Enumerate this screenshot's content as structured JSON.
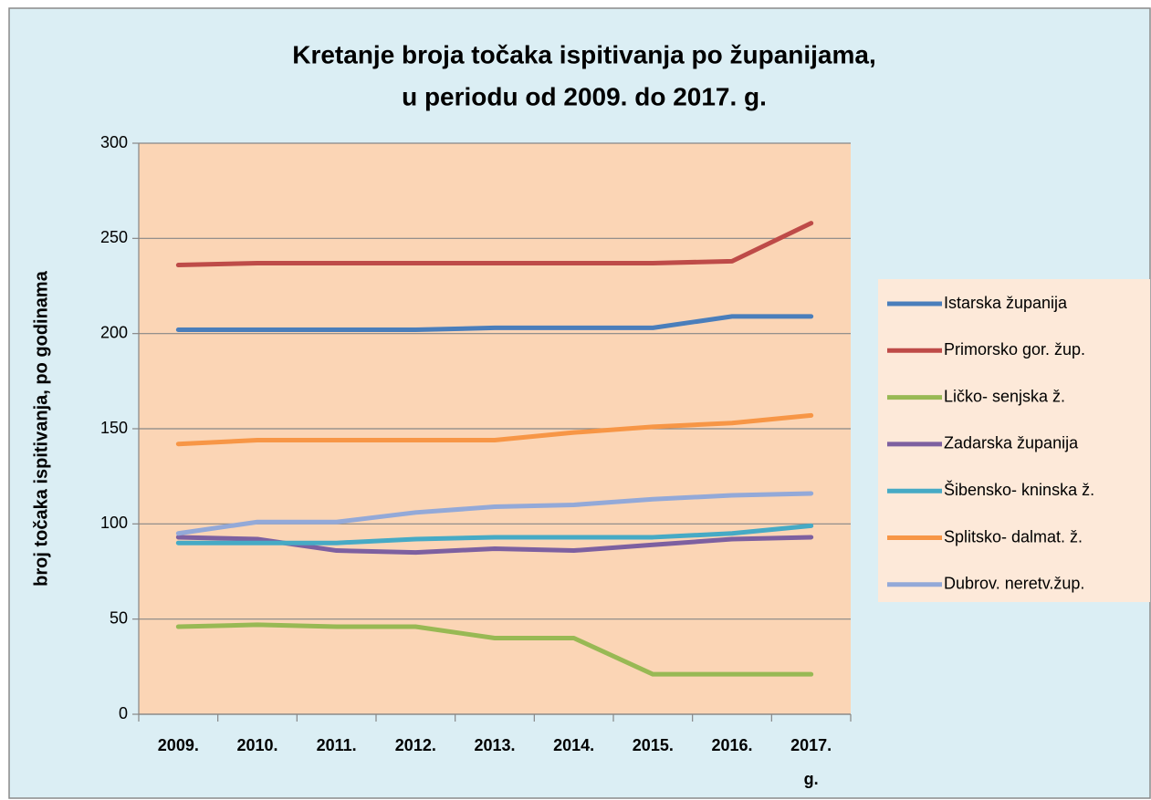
{
  "chart_data": {
    "type": "line",
    "title": [
      "Kretanje broja točaka ispitivanja po županijama,",
      "u periodu od 2009. do 2017. g."
    ],
    "y_label": "broj točaka ispitivanja, po godinama",
    "categories": [
      "2009.",
      "2010.",
      "2011.",
      "2012.",
      "2013.",
      "2014.",
      "2015.",
      "2016.",
      "2017. g."
    ],
    "series": [
      {
        "name": "Istarska županija",
        "color": "#4a7ebb",
        "values": [
          202,
          202,
          202,
          202,
          203,
          203,
          203,
          209,
          209
        ]
      },
      {
        "name": "Primorsko gor. žup.",
        "color": "#be4b48",
        "values": [
          236,
          237,
          237,
          237,
          237,
          237,
          237,
          238,
          258
        ]
      },
      {
        "name": "Ličko- senjska ž.",
        "color": "#98b954",
        "values": [
          46,
          47,
          46,
          46,
          40,
          40,
          21,
          21,
          21
        ]
      },
      {
        "name": "Zadarska županija",
        "color": "#7d60a0",
        "values": [
          93,
          92,
          86,
          85,
          87,
          86,
          89,
          92,
          93
        ]
      },
      {
        "name": "Šibensko- kninska ž.",
        "color": "#46aac5",
        "values": [
          90,
          90,
          90,
          92,
          93,
          93,
          93,
          95,
          99
        ]
      },
      {
        "name": "Splitsko- dalmat. ž.",
        "color": "#f79646",
        "values": [
          142,
          144,
          144,
          144,
          144,
          148,
          151,
          153,
          157
        ]
      },
      {
        "name": "Dubrov. neretv.žup.",
        "color": "#93a9d8",
        "values": [
          95,
          101,
          101,
          106,
          109,
          110,
          113,
          115,
          116
        ]
      }
    ],
    "ylim": [
      0,
      300
    ],
    "yticks": [
      0,
      50,
      100,
      150,
      200,
      250,
      300
    ],
    "grid": true,
    "legend": "right"
  }
}
